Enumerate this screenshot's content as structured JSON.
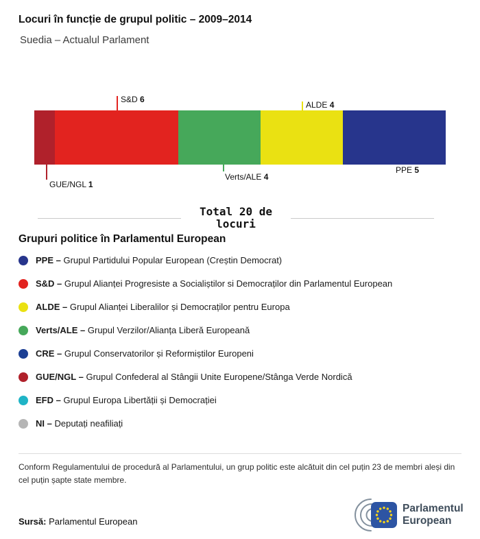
{
  "chart_data": {
    "type": "bar",
    "orientation": "horizontal",
    "stacked": true,
    "title": "Locuri în funcție de grupul politic – 2009–2014",
    "subtitle": "Suedia – Actualul Parlament",
    "total": 20,
    "total_label": "Total 20 de locuri",
    "categories": [
      "GUE/NGL",
      "S&D",
      "Verts/ALE",
      "ALDE",
      "PPE"
    ],
    "values": [
      1,
      6,
      4,
      4,
      5
    ],
    "segments": [
      {
        "group": "GUE/NGL",
        "seats": 1,
        "color": "#b0212b"
      },
      {
        "group": "S&D",
        "seats": 6,
        "color": "#e2231f"
      },
      {
        "group": "Verts/ALE",
        "seats": 4,
        "color": "#46a85a"
      },
      {
        "group": "ALDE",
        "seats": 4,
        "color": "#eae112"
      },
      {
        "group": "PPE",
        "seats": 5,
        "color": "#27358c"
      }
    ]
  },
  "legend": {
    "heading": "Grupuri politice în Parlamentul European",
    "items": [
      {
        "abbr": "PPE –",
        "name": "Grupul Partidului Popular European (Creștin Democrat)",
        "color": "#27358c"
      },
      {
        "abbr": "S&D –",
        "name": "Grupul Alianței Progresiste a Socialiștilor si Democraților din Parlamentul European",
        "color": "#e2231f"
      },
      {
        "abbr": "ALDE –",
        "name": "Grupul Alianței Liberalilor și Democraților pentru Europa",
        "color": "#eae112"
      },
      {
        "abbr": "Verts/ALE –",
        "name": "Grupul Verzilor/Alianța Liberă Europeană",
        "color": "#46a85a"
      },
      {
        "abbr": "CRE –",
        "name": "Grupul Conservatorilor și Reformiștilor Europeni",
        "color": "#1c3f94"
      },
      {
        "abbr": "GUE/NGL –",
        "name": "Grupul Confederal al Stângii Unite Europene/Stânga Verde Nordică",
        "color": "#b0212b"
      },
      {
        "abbr": "EFD –",
        "name": "Grupul Europa Libertății și Democrației",
        "color": "#1fb4c6"
      },
      {
        "abbr": "NI –",
        "name": "Deputați neafiliați",
        "color": "#b5b5b5"
      }
    ]
  },
  "footnote": "Conform Regulamentului de procedură al Parlamentului, un grup politic este alcătuit din cel puțin 23 de membri aleși din cel puțin șapte state membre.",
  "source": {
    "label": "Sursă:",
    "value": "Parlamentul European"
  },
  "logo": {
    "line1": "Parlamentul",
    "line2": "European"
  }
}
